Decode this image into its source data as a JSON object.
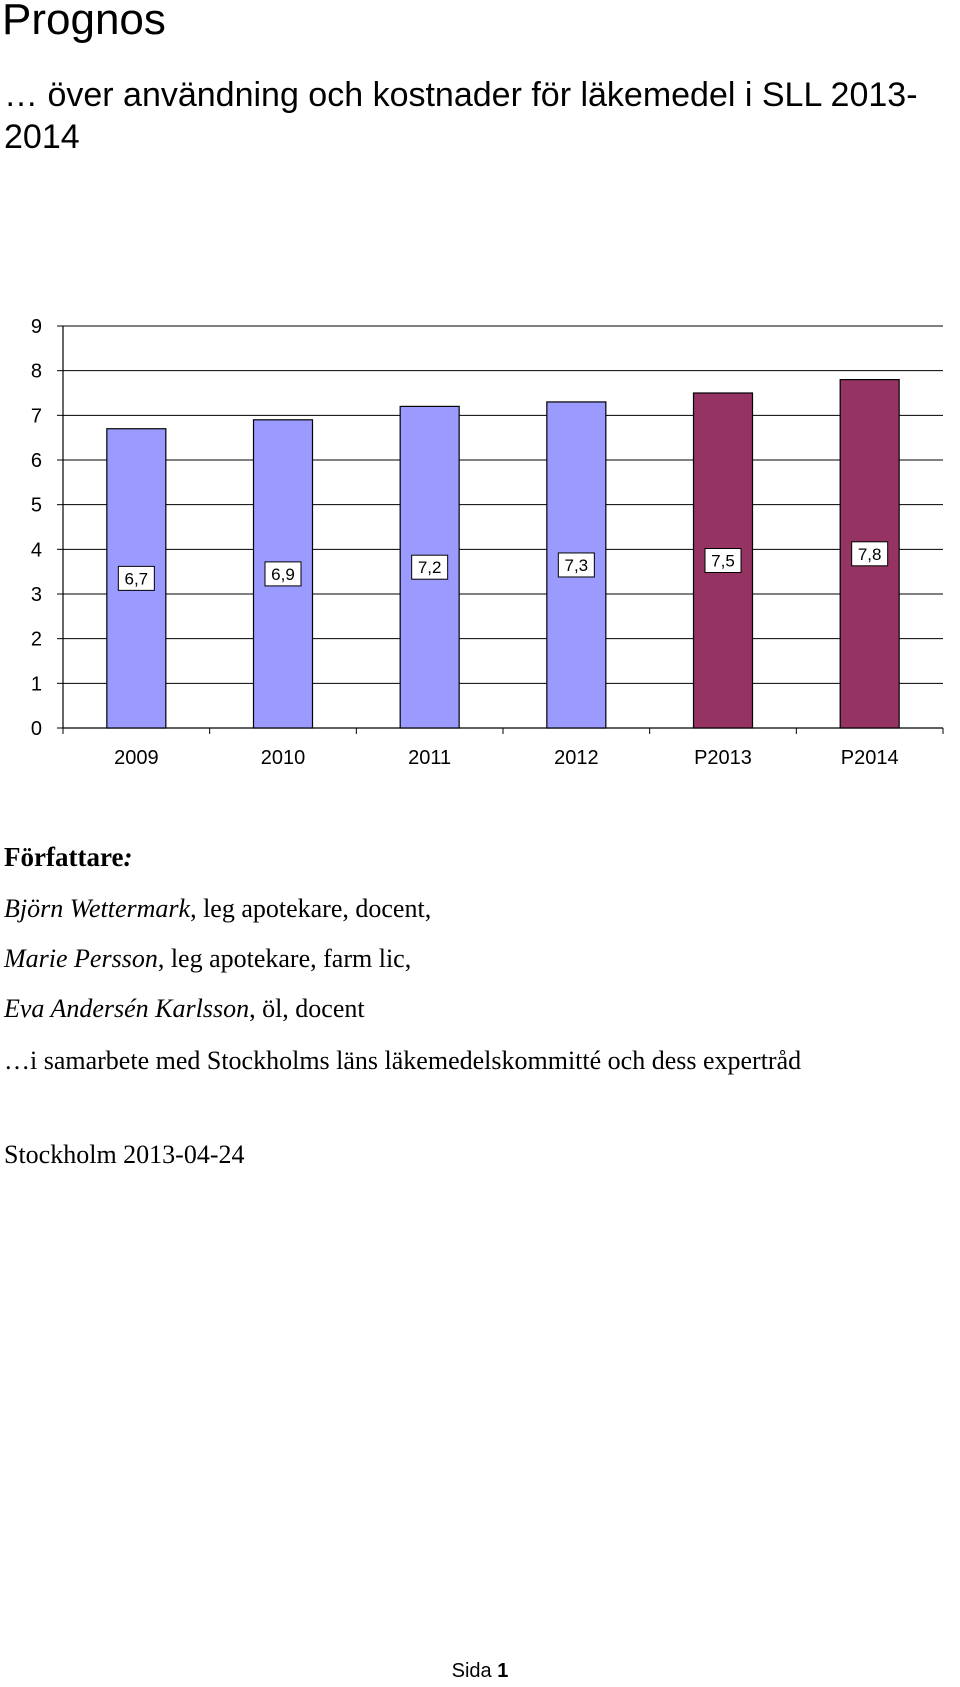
{
  "title": "Prognos",
  "subtitle": "… över användning och kostnader för läkemedel i SLL 2013-2014",
  "chart_data": {
    "type": "bar",
    "title": "",
    "xlabel": "",
    "ylabel": "",
    "categories": [
      "2009",
      "2010",
      "2011",
      "2012",
      "P2013",
      "P2014"
    ],
    "values": [
      6.7,
      6.9,
      7.2,
      7.3,
      7.5,
      7.8
    ],
    "data_labels": [
      "6,7",
      "6,9",
      "7,2",
      "7,3",
      "7,5",
      "7,8"
    ],
    "bar_colors": [
      "#9b9bff",
      "#9b9bff",
      "#9b9bff",
      "#9b9bff",
      "#953462",
      "#953462"
    ],
    "ylim": [
      0,
      9
    ],
    "yticks": [
      "0",
      "1",
      "2",
      "3",
      "4",
      "5",
      "6",
      "7",
      "8",
      "9"
    ],
    "grid": true,
    "legend": "none"
  },
  "authors": {
    "heading": "Författare",
    "heading_colon": ":",
    "lines": [
      {
        "name": "Björn Wettermark",
        "rest": ", leg apotekare, docent,"
      },
      {
        "name": "Marie Persson",
        "rest": ", leg apotekare, farm lic,"
      },
      {
        "name": "Eva Andersén Karlsson",
        "rest": ", öl, docent"
      }
    ],
    "collaboration": "…i samarbete med Stockholms läns läkemedelskommitté och dess expertråd",
    "place_date": "Stockholm  2013-04-24"
  },
  "footer": {
    "page_label": "Sida",
    "page_number": "1"
  }
}
